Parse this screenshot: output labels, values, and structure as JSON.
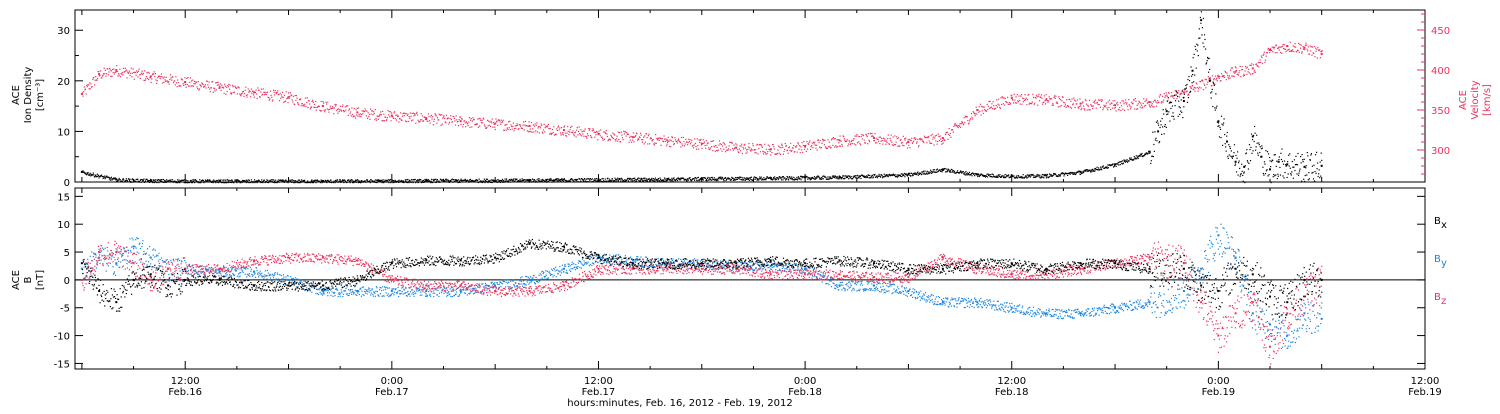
{
  "colors": {
    "black": "#000000",
    "red": "#e8335c",
    "blue": "#1a85e0"
  },
  "time_axis": {
    "tick_labels": [
      {
        "time": "12:00",
        "date": "Feb.16"
      },
      {
        "time": "0:00",
        "date": "Feb.17"
      },
      {
        "time": "12:00",
        "date": "Feb.17"
      },
      {
        "time": "0:00",
        "date": "Feb.18"
      },
      {
        "time": "12:00",
        "date": "Feb.18"
      },
      {
        "time": "0:00",
        "date": "Feb.19"
      },
      {
        "time": "12:00",
        "date": "Feb.19"
      }
    ],
    "xlabel": "hours:minutes, Feb. 16, 2012 - Feb. 19, 2012"
  },
  "top_panel": {
    "ylabel_left_lines": [
      "ACE",
      "Ion Density",
      "[cm⁻³]"
    ],
    "ylabel_right_lines": [
      "ACE",
      "Velocity",
      "[km/s]"
    ],
    "left_tick_labels": [
      "0",
      "10",
      "20",
      "30"
    ],
    "right_tick_labels": [
      "300",
      "350",
      "400",
      "450"
    ]
  },
  "bottom_panel": {
    "ylabel_lines": [
      "ACE",
      "B",
      "[nT]"
    ],
    "tick_labels": [
      "-15",
      "-10",
      "-5",
      "0",
      "5",
      "10",
      "15"
    ],
    "legend": {
      "bx": "B",
      "by": "B",
      "bz": "B",
      "bx_sub": "x",
      "by_sub": "y",
      "bz_sub": "z"
    }
  },
  "chart_data": [
    {
      "type": "scatter",
      "panel": "top",
      "x_unit": "hours since Feb. 16, 2012 00:00 UT",
      "xlim": [
        5.6,
        84
      ],
      "series": [
        {
          "name": "Ion Density",
          "axis": "left",
          "ylim": [
            0,
            34
          ],
          "color": "#000000",
          "x": [
            6,
            8,
            10,
            14,
            20,
            26,
            32,
            36,
            40,
            42,
            46,
            50,
            54,
            56,
            58,
            60,
            62,
            64,
            66,
            68,
            68.5,
            69,
            70,
            70.5,
            71,
            71.5,
            72,
            72.5,
            73,
            73.5,
            74,
            74.5,
            75,
            75.5,
            76,
            77,
            78
          ],
          "y": [
            2,
            0.5,
            0.3,
            0.2,
            0.2,
            0.3,
            0.4,
            0.5,
            0.6,
            0.7,
            0.8,
            1.0,
            1.5,
            2.5,
            1.5,
            1.2,
            1.3,
            2.0,
            3.5,
            6.0,
            10,
            14,
            16,
            22,
            32,
            20,
            12,
            8,
            4,
            3,
            9,
            5,
            2.5,
            4,
            3.5,
            3,
            3.2
          ]
        },
        {
          "name": "Velocity",
          "axis": "right",
          "ylim": [
            260,
            475
          ],
          "color": "#e8335c",
          "x": [
            6,
            7,
            8,
            10,
            12,
            14,
            16,
            18,
            20,
            22,
            24,
            26,
            28,
            30,
            32,
            34,
            36,
            38,
            40,
            42,
            44,
            46,
            48,
            50,
            52,
            54,
            56,
            58,
            60,
            62,
            64,
            66,
            68,
            70,
            72,
            73,
            74,
            75,
            76,
            77,
            78
          ],
          "y": [
            370,
            395,
            400,
            392,
            385,
            378,
            372,
            366,
            355,
            347,
            343,
            340,
            336,
            333,
            330,
            325,
            320,
            316,
            312,
            308,
            303,
            301,
            305,
            312,
            315,
            310,
            315,
            350,
            365,
            363,
            358,
            356,
            360,
            372,
            392,
            398,
            402,
            425,
            430,
            428,
            420
          ]
        }
      ]
    },
    {
      "type": "scatter",
      "panel": "bottom",
      "x_unit": "hours since Feb. 16, 2012 00:00 UT",
      "xlim": [
        5.6,
        84
      ],
      "ylim": [
        -16,
        16.5
      ],
      "series": [
        {
          "name": "Bx",
          "color": "#000000",
          "x": [
            6,
            7,
            8,
            9,
            10,
            11,
            12,
            14,
            16,
            18,
            20,
            22,
            24,
            26,
            28,
            30,
            32,
            34,
            36,
            38,
            40,
            42,
            44,
            46,
            48,
            50,
            52,
            54,
            56,
            58,
            60,
            62,
            64,
            66,
            68,
            70,
            71,
            72,
            73,
            74,
            75,
            76,
            77,
            78
          ],
          "y": [
            3,
            -2,
            -4,
            0,
            1,
            -1,
            0,
            0,
            -1,
            -1,
            -1,
            0,
            3,
            3.5,
            3.5,
            4,
            6.5,
            6,
            4,
            3,
            3,
            3,
            3,
            3.5,
            3,
            3.5,
            3,
            2,
            2,
            3,
            3,
            2,
            3,
            3,
            2,
            2,
            -1,
            -2,
            2,
            1,
            -3,
            -4,
            0,
            0
          ]
        },
        {
          "name": "By",
          "color": "#1a85e0",
          "x": [
            6,
            7,
            8,
            9,
            10,
            11,
            12,
            14,
            16,
            18,
            20,
            22,
            24,
            26,
            28,
            30,
            32,
            34,
            36,
            38,
            40,
            42,
            44,
            46,
            48,
            50,
            52,
            54,
            56,
            58,
            60,
            62,
            64,
            66,
            68,
            70,
            71,
            72,
            73,
            74,
            75,
            76,
            77,
            78
          ],
          "y": [
            2,
            4,
            3,
            6,
            4,
            2,
            2,
            1.5,
            1.5,
            0,
            -2,
            -2,
            -2,
            -2,
            -2,
            -1,
            0,
            2,
            4,
            3.5,
            3,
            3,
            2.5,
            2.5,
            2,
            -1,
            -1,
            -2,
            -4,
            -4,
            -5,
            -6,
            -6,
            -5,
            -4,
            -2,
            2,
            8,
            4,
            -6,
            -8,
            -10,
            -6,
            -7
          ]
        },
        {
          "name": "Bz",
          "color": "#e8335c",
          "x": [
            6,
            7,
            8,
            9,
            10,
            11,
            12,
            14,
            16,
            18,
            20,
            22,
            24,
            26,
            28,
            30,
            32,
            34,
            36,
            38,
            40,
            42,
            44,
            46,
            48,
            50,
            52,
            54,
            56,
            58,
            60,
            62,
            64,
            66,
            68,
            70,
            71,
            72,
            73,
            74,
            75,
            76,
            77,
            78
          ],
          "y": [
            0,
            5,
            5,
            3,
            0,
            2,
            2,
            2,
            3.5,
            4,
            4,
            3.5,
            0,
            -1,
            -1,
            -2,
            -2,
            -1,
            2,
            2,
            2,
            2,
            2,
            1,
            1,
            1,
            0.5,
            0.5,
            4,
            2,
            1,
            1,
            2,
            3,
            4,
            3,
            -4,
            -10,
            -6,
            -4,
            -12,
            -6,
            -3,
            0
          ]
        }
      ]
    }
  ]
}
